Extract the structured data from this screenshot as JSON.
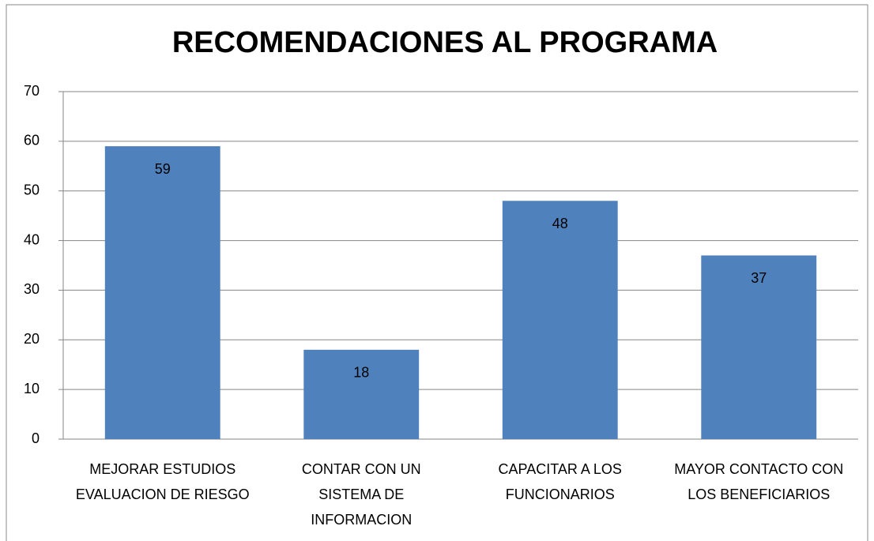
{
  "chart_data": {
    "type": "bar",
    "title": "RECOMENDACIONES AL PROGRAMA",
    "categories": [
      "MEJORAR ESTUDIOS EVALUACION DE RIESGO",
      "CONTAR CON UN SISTEMA DE INFORMACION",
      "CAPACITAR A LOS FUNCIONARIOS",
      "MAYOR CONTACTO CON LOS BENEFICIARIOS"
    ],
    "values": [
      59,
      18,
      48,
      37
    ],
    "color": "#4f81bd",
    "ylim": [
      0,
      70
    ],
    "yticks": [
      0,
      10,
      20,
      30,
      40,
      50,
      60,
      70
    ],
    "grid": true
  }
}
